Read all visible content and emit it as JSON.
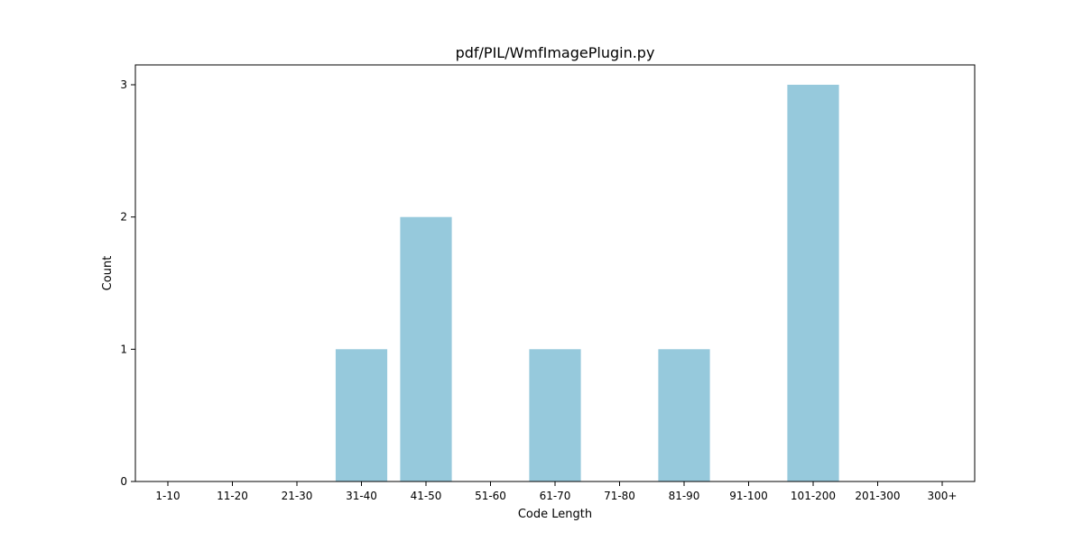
{
  "chart_data": {
    "type": "bar",
    "title": "pdf/PIL/WmfImagePlugin.py",
    "xlabel": "Code Length",
    "ylabel": "Count",
    "categories": [
      "1-10",
      "11-20",
      "21-30",
      "31-40",
      "41-50",
      "51-60",
      "61-70",
      "71-80",
      "81-90",
      "91-100",
      "101-200",
      "201-300",
      "300+"
    ],
    "values": [
      0,
      0,
      0,
      1,
      2,
      0,
      1,
      0,
      1,
      0,
      3,
      0,
      0
    ],
    "ylim": [
      0,
      3.15
    ],
    "yticks": [
      0,
      1,
      2,
      3
    ],
    "grid": false,
    "bar_color": "#96c9dc"
  }
}
